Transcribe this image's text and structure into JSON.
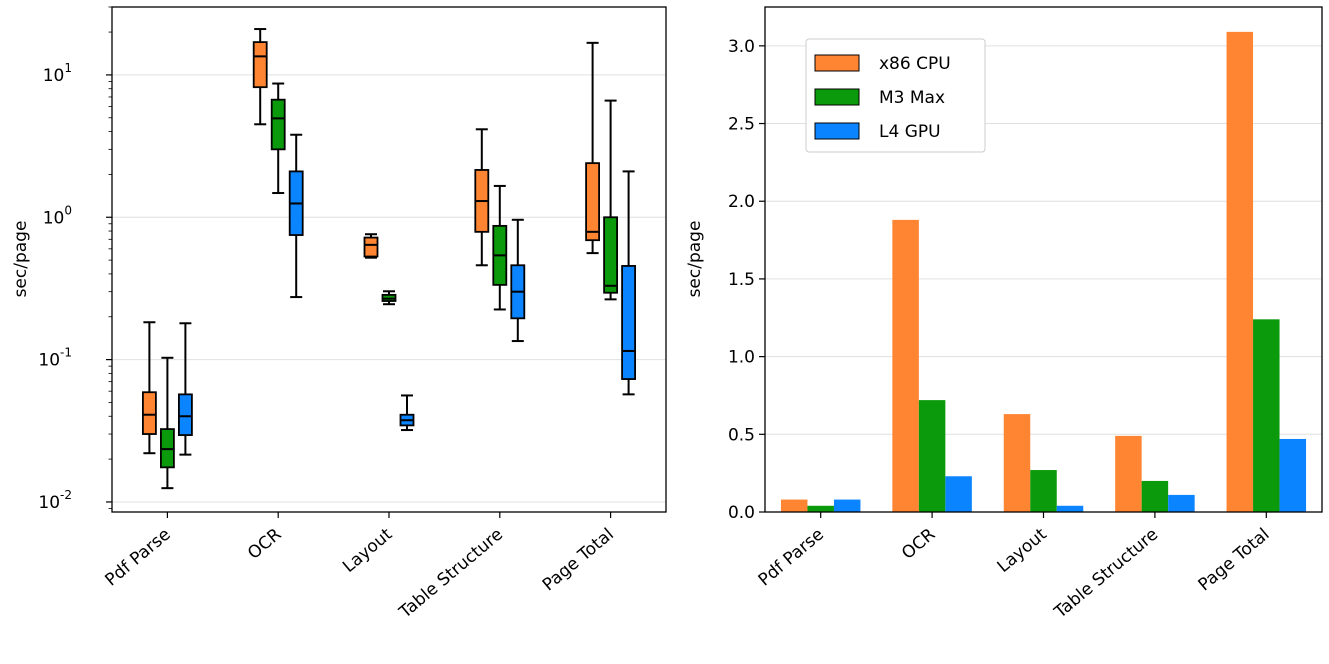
{
  "colors": {
    "cpu": "#FF8533",
    "m3": "#0B9A0B",
    "gpu": "#0A84FF",
    "grid": "#E0E0E0"
  },
  "chart_data": [
    {
      "type": "box",
      "title": "",
      "xlabel": "",
      "ylabel": "sec/page",
      "yscale": "log",
      "ylim": [
        0.0085,
        30
      ],
      "ytick_labels": [
        {
          "mantissa": "10",
          "exp": "-2",
          "value": 0.01
        },
        {
          "mantissa": "10",
          "exp": "-1",
          "value": 0.1
        },
        {
          "mantissa": "10",
          "exp": "0",
          "value": 1
        },
        {
          "mantissa": "10",
          "exp": "1",
          "value": 10
        }
      ],
      "categories": [
        "Pdf Parse",
        "OCR",
        "Layout",
        "Table Structure",
        "Page Total"
      ],
      "series": [
        {
          "name": "x86 CPU",
          "color_key": "cpu",
          "boxes": [
            {
              "whislo": 0.022,
              "q1": 0.03,
              "med": 0.041,
              "q3": 0.059,
              "whishi": 0.183
            },
            {
              "whislo": 4.5,
              "q1": 8.2,
              "med": 13.5,
              "q3": 17.0,
              "whishi": 21.0
            },
            {
              "whislo": 0.52,
              "q1": 0.53,
              "med": 0.64,
              "q3": 0.72,
              "whishi": 0.76
            },
            {
              "whislo": 0.46,
              "q1": 0.79,
              "med": 1.3,
              "q3": 2.15,
              "whishi": 4.15
            },
            {
              "whislo": 0.56,
              "q1": 0.69,
              "med": 0.79,
              "q3": 2.4,
              "whishi": 16.8
            }
          ]
        },
        {
          "name": "M3 Max",
          "color_key": "m3",
          "boxes": [
            {
              "whislo": 0.0125,
              "q1": 0.0175,
              "med": 0.0235,
              "q3": 0.0325,
              "whishi": 0.103
            },
            {
              "whislo": 1.48,
              "q1": 3.0,
              "med": 4.95,
              "q3": 6.7,
              "whishi": 8.7
            },
            {
              "whislo": 0.245,
              "q1": 0.258,
              "med": 0.268,
              "q3": 0.285,
              "whishi": 0.302
            },
            {
              "whislo": 0.225,
              "q1": 0.335,
              "med": 0.54,
              "q3": 0.87,
              "whishi": 1.66
            },
            {
              "whislo": 0.265,
              "q1": 0.295,
              "med": 0.33,
              "q3": 1.0,
              "whishi": 6.6
            }
          ]
        },
        {
          "name": "L4 GPU",
          "color_key": "gpu",
          "boxes": [
            {
              "whislo": 0.0215,
              "q1": 0.0295,
              "med": 0.04,
              "q3": 0.057,
              "whishi": 0.18
            },
            {
              "whislo": 0.275,
              "q1": 0.75,
              "med": 1.25,
              "q3": 2.1,
              "whishi": 3.8
            },
            {
              "whislo": 0.032,
              "q1": 0.0345,
              "med": 0.0375,
              "q3": 0.041,
              "whishi": 0.056
            },
            {
              "whislo": 0.135,
              "q1": 0.195,
              "med": 0.3,
              "q3": 0.46,
              "whishi": 0.96
            },
            {
              "whislo": 0.057,
              "q1": 0.073,
              "med": 0.115,
              "q3": 0.455,
              "whishi": 2.1
            }
          ]
        }
      ]
    },
    {
      "type": "bar",
      "title": "",
      "xlabel": "",
      "ylabel": "sec/page",
      "ylim": [
        0,
        3.25
      ],
      "yticks": [
        0.0,
        0.5,
        1.0,
        1.5,
        2.0,
        2.5,
        3.0
      ],
      "ytick_labels": [
        "0.0",
        "0.5",
        "1.0",
        "1.5",
        "2.0",
        "2.5",
        "3.0"
      ],
      "categories": [
        "Pdf Parse",
        "OCR",
        "Layout",
        "Table Structure",
        "Page Total"
      ],
      "legend_position": "upper-left",
      "series": [
        {
          "name": "x86 CPU",
          "color_key": "cpu",
          "values": [
            0.08,
            1.88,
            0.63,
            0.49,
            3.09
          ]
        },
        {
          "name": "M3 Max",
          "color_key": "m3",
          "values": [
            0.04,
            0.72,
            0.27,
            0.2,
            1.24
          ]
        },
        {
          "name": "L4 GPU",
          "color_key": "gpu",
          "values": [
            0.08,
            0.23,
            0.04,
            0.11,
            0.47
          ]
        }
      ]
    }
  ]
}
